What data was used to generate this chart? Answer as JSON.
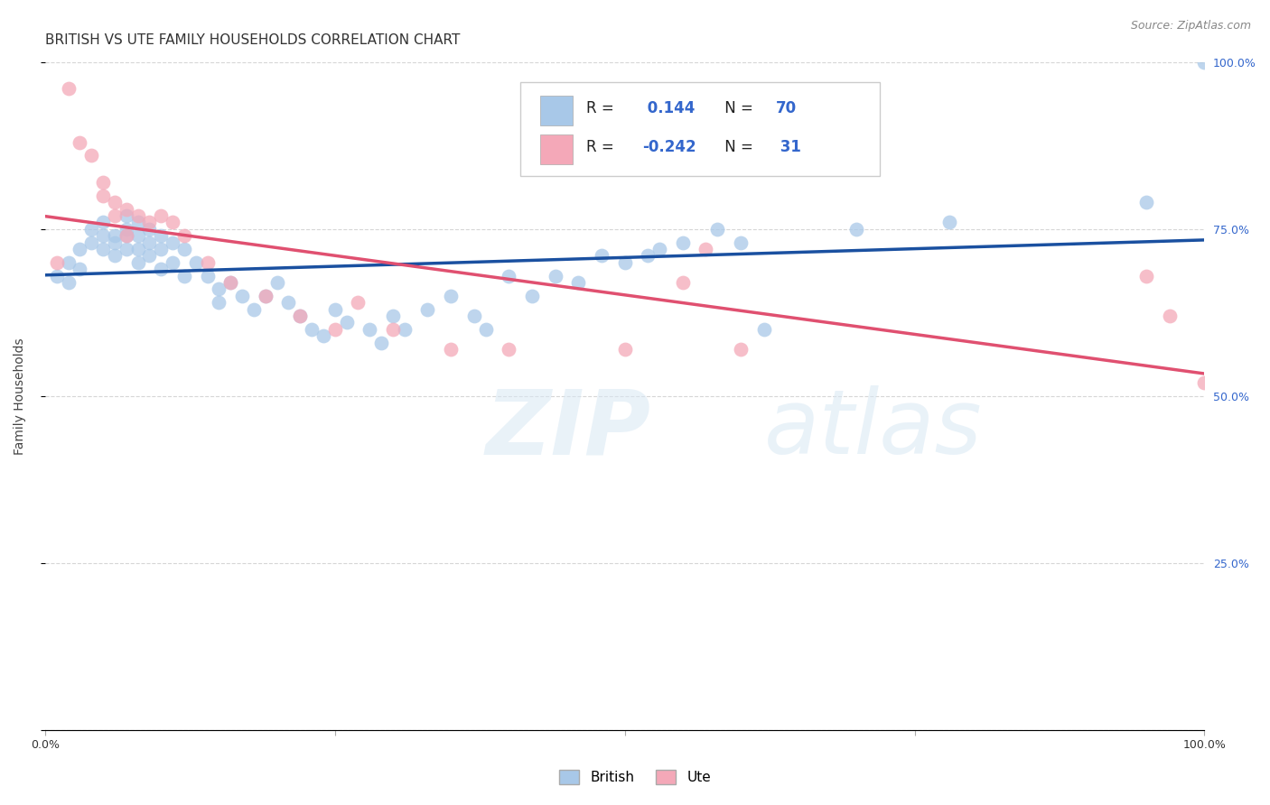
{
  "title": "BRITISH VS UTE FAMILY HOUSEHOLDS CORRELATION CHART",
  "source": "Source: ZipAtlas.com",
  "ylabel": "Family Households",
  "british_R": 0.144,
  "british_N": 70,
  "ute_R": -0.242,
  "ute_N": 31,
  "british_color": "#A8C8E8",
  "ute_color": "#F4A8B8",
  "british_line_color": "#1a50a0",
  "ute_line_color": "#e05070",
  "british_scatter_x": [
    0.01,
    0.02,
    0.02,
    0.03,
    0.03,
    0.04,
    0.04,
    0.05,
    0.05,
    0.05,
    0.06,
    0.06,
    0.06,
    0.07,
    0.07,
    0.07,
    0.07,
    0.08,
    0.08,
    0.08,
    0.08,
    0.09,
    0.09,
    0.09,
    0.1,
    0.1,
    0.1,
    0.11,
    0.11,
    0.12,
    0.12,
    0.13,
    0.14,
    0.15,
    0.15,
    0.16,
    0.17,
    0.18,
    0.19,
    0.2,
    0.21,
    0.22,
    0.23,
    0.24,
    0.25,
    0.26,
    0.28,
    0.29,
    0.3,
    0.31,
    0.33,
    0.35,
    0.37,
    0.38,
    0.4,
    0.42,
    0.44,
    0.46,
    0.48,
    0.5,
    0.52,
    0.53,
    0.55,
    0.58,
    0.6,
    0.62,
    0.7,
    0.78,
    0.95,
    1.0
  ],
  "british_scatter_y": [
    0.68,
    0.67,
    0.7,
    0.69,
    0.72,
    0.73,
    0.75,
    0.74,
    0.76,
    0.72,
    0.74,
    0.73,
    0.71,
    0.77,
    0.75,
    0.74,
    0.72,
    0.76,
    0.74,
    0.72,
    0.7,
    0.75,
    0.73,
    0.71,
    0.74,
    0.72,
    0.69,
    0.73,
    0.7,
    0.72,
    0.68,
    0.7,
    0.68,
    0.66,
    0.64,
    0.67,
    0.65,
    0.63,
    0.65,
    0.67,
    0.64,
    0.62,
    0.6,
    0.59,
    0.63,
    0.61,
    0.6,
    0.58,
    0.62,
    0.6,
    0.63,
    0.65,
    0.62,
    0.6,
    0.68,
    0.65,
    0.68,
    0.67,
    0.71,
    0.7,
    0.71,
    0.72,
    0.73,
    0.75,
    0.73,
    0.6,
    0.75,
    0.76,
    0.79,
    1.0
  ],
  "ute_scatter_x": [
    0.01,
    0.02,
    0.03,
    0.04,
    0.05,
    0.05,
    0.06,
    0.06,
    0.07,
    0.07,
    0.08,
    0.09,
    0.1,
    0.11,
    0.12,
    0.14,
    0.16,
    0.19,
    0.22,
    0.25,
    0.27,
    0.3,
    0.35,
    0.4,
    0.5,
    0.55,
    0.57,
    0.6,
    0.95,
    0.97,
    1.0
  ],
  "ute_scatter_y": [
    0.7,
    0.96,
    0.88,
    0.86,
    0.82,
    0.8,
    0.79,
    0.77,
    0.78,
    0.74,
    0.77,
    0.76,
    0.77,
    0.76,
    0.74,
    0.7,
    0.67,
    0.65,
    0.62,
    0.6,
    0.64,
    0.6,
    0.57,
    0.57,
    0.57,
    0.67,
    0.72,
    0.57,
    0.68,
    0.62,
    0.52
  ],
  "title_fontsize": 11,
  "source_fontsize": 9,
  "axis_label_fontsize": 10,
  "tick_fontsize": 9,
  "legend_fontsize": 12
}
